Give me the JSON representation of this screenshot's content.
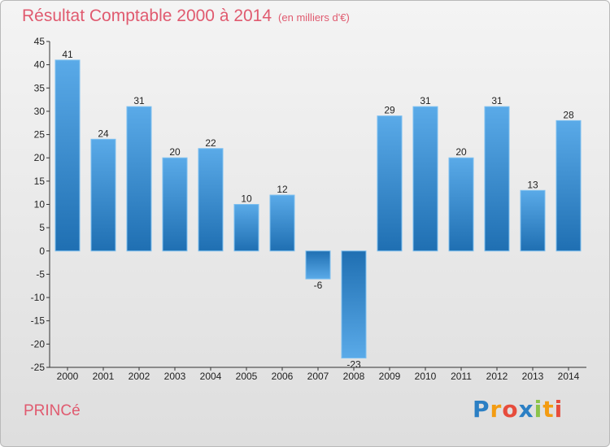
{
  "title": {
    "main": "Résultat Comptable 2000 à 2014",
    "unit": "(en milliers d'€)"
  },
  "town": "PRINCé",
  "logo": {
    "text": "Proxiti",
    "letters": [
      "P",
      "r",
      "o",
      "x",
      "i",
      "t",
      "i"
    ],
    "colors": [
      "#2b7fc4",
      "#f39c12",
      "#e74c3c",
      "#2b7fc4",
      "#8bc34a",
      "#f39c12",
      "#e74c3c"
    ]
  },
  "chart_data": {
    "type": "bar",
    "title": "Résultat Comptable 2000 à 2014",
    "ylabel": "",
    "xlabel": "",
    "ylim": [
      -25,
      45
    ],
    "yticks": [
      45,
      40,
      35,
      30,
      25,
      20,
      15,
      10,
      5,
      0,
      -5,
      -10,
      -15,
      -20,
      -25
    ],
    "grid": false,
    "categories": [
      "2000",
      "2001",
      "2002",
      "2003",
      "2004",
      "2005",
      "2006",
      "2007",
      "2008",
      "2009",
      "2010",
      "2011",
      "2012",
      "2013",
      "2014"
    ],
    "values": [
      41,
      24,
      31,
      20,
      22,
      10,
      12,
      -6,
      -23,
      29,
      31,
      20,
      31,
      13,
      28
    ],
    "bar_color_light": "#5aaae8",
    "bar_color_dark": "#1f6fb2"
  }
}
